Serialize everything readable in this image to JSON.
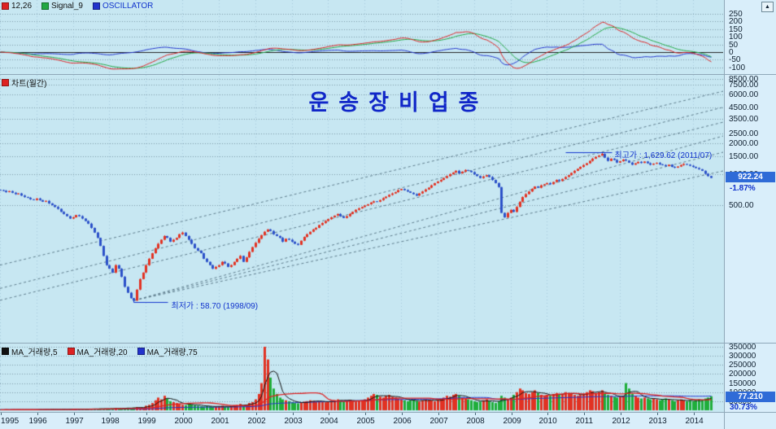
{
  "window": {
    "expand_button_glyph": "▲"
  },
  "macd_panel": {
    "legend": [
      {
        "label": "12,26",
        "color": "#dd2222"
      },
      {
        "label": "Signal_9",
        "color": "#22a844"
      },
      {
        "label": "OSCILLATOR",
        "color": "#2233cc",
        "label_color": "#1133cc"
      }
    ],
    "ticks": [
      {
        "v": 250,
        "label": "250"
      },
      {
        "v": 200,
        "label": "200"
      },
      {
        "v": 150,
        "label": "150"
      },
      {
        "v": 100,
        "label": "100"
      },
      {
        "v": 50,
        "label": "50"
      },
      {
        "v": 0,
        "label": "0"
      },
      {
        "v": -50,
        "label": "-50"
      },
      {
        "v": -100,
        "label": "-100"
      }
    ]
  },
  "main_panel": {
    "legend_label": "차트(월간)",
    "legend_color": "#dd2222",
    "title": "운송장비업종",
    "ticks": [
      {
        "v": 8500,
        "label": "8500.00"
      },
      {
        "v": 7500,
        "label": "7500.00"
      },
      {
        "v": 6000,
        "label": "6000.00"
      },
      {
        "v": 4500,
        "label": "4500.00"
      },
      {
        "v": 3500,
        "label": "3500.00"
      },
      {
        "v": 2500,
        "label": "2500.00"
      },
      {
        "v": 2000,
        "label": "2000.00"
      },
      {
        "v": 1500,
        "label": "1500.00"
      },
      {
        "v": 1000,
        "label": "1000.00"
      },
      {
        "v": 500,
        "label": "500.00"
      }
    ],
    "badge_label": "922.24",
    "badge_color": "#2f6bd7",
    "change_percent": "-1.87%",
    "high_annotation": "최고가 : 1,629.62 (2011/07)",
    "low_annotation": "최저가 : 58.70 (1998/09)"
  },
  "volume_panel": {
    "legend": [
      {
        "label": "MA_거래량,5",
        "color": "#111111"
      },
      {
        "label": "MA_거래량,20",
        "color": "#dd2222"
      },
      {
        "label": "MA_거래량,75",
        "color": "#2233cc"
      }
    ],
    "ticks": [
      {
        "v": 350000,
        "label": "350000"
      },
      {
        "v": 300000,
        "label": "300000"
      },
      {
        "v": 250000,
        "label": "250000"
      },
      {
        "v": 200000,
        "label": "200000"
      },
      {
        "v": 150000,
        "label": "150000"
      },
      {
        "v": 100000,
        "label": "100000"
      },
      {
        "v": 50000,
        "label": "50000"
      }
    ],
    "badge_label": "77.210",
    "badge_color": "#2f6bd7",
    "percent": "30.73%"
  },
  "x_axis": {
    "years": [
      1995,
      1996,
      1997,
      1998,
      1999,
      2000,
      2001,
      2002,
      2003,
      2004,
      2005,
      2006,
      2007,
      2008,
      2009,
      2010,
      2011,
      2012,
      2013,
      2014
    ]
  },
  "chart_data": {
    "type": "candlestick",
    "title": "운송장비업종",
    "freq": "monthly",
    "start": "1995-01",
    "end": "2014-07",
    "y_scale": "log",
    "ylim_log": [
      23,
      9300
    ],
    "total_slots": 238,
    "last_close": 922.24,
    "last_change_pct": -1.87,
    "last_volume": 77210,
    "volume_axis_max": 350000,
    "macd_axis_range": [
      -120,
      280
    ],
    "low_point": {
      "index": 44,
      "date": "1998-09",
      "value": 58.7
    },
    "high_point": {
      "index": 198,
      "date": "2011-07",
      "value": 1629.62
    },
    "colors": {
      "candle_up": "#e23222",
      "candle_down": "#2b50c8",
      "macd": "#dd2222",
      "signal": "#22a844",
      "oscillator": "#2233cc",
      "vol_up": "#e23222",
      "vol_down": "#1fae3a",
      "vol_ma5": "#111111",
      "vol_ma20": "#dd2222",
      "vol_ma75": "#2233cc",
      "grid": "#7d99a8",
      "year_grid": "#a5c9da",
      "trend": "#5d7b8b",
      "annotation": "#1133cc"
    },
    "closes": [
      700,
      690,
      670,
      685,
      660,
      640,
      650,
      620,
      600,
      590,
      570,
      560,
      580,
      560,
      540,
      550,
      520,
      500,
      480,
      460,
      430,
      410,
      390,
      370,
      380,
      400,
      390,
      370,
      350,
      330,
      300,
      270,
      240,
      200,
      160,
      130,
      120,
      110,
      130,
      120,
      100,
      80,
      70,
      62,
      58.7,
      75,
      95,
      110,
      130,
      150,
      170,
      190,
      210,
      230,
      250,
      240,
      220,
      230,
      240,
      260,
      270,
      250,
      230,
      210,
      190,
      180,
      170,
      150,
      140,
      130,
      120,
      125,
      130,
      140,
      135,
      125,
      130,
      140,
      150,
      160,
      140,
      155,
      175,
      195,
      215,
      235,
      255,
      275,
      290,
      280,
      260,
      250,
      240,
      220,
      235,
      230,
      220,
      210,
      205,
      225,
      245,
      260,
      275,
      290,
      300,
      320,
      335,
      350,
      365,
      380,
      395,
      410,
      390,
      375,
      390,
      410,
      430,
      450,
      465,
      480,
      495,
      510,
      530,
      545,
      540,
      560,
      585,
      605,
      630,
      650,
      670,
      700,
      720,
      700,
      680,
      660,
      640,
      620,
      650,
      680,
      710,
      740,
      780,
      820,
      850,
      880,
      920,
      960,
      1000,
      1040,
      1080,
      1020,
      1060,
      1100,
      1080,
      1050,
      1000,
      960,
      920,
      950,
      980,
      940,
      880,
      820,
      750,
      420,
      380,
      420,
      450,
      430,
      480,
      540,
      600,
      640,
      680,
      720,
      760,
      740,
      780,
      800,
      820,
      800,
      840,
      880,
      860,
      900,
      940,
      980,
      1030,
      1080,
      1130,
      1180,
      1230,
      1280,
      1350,
      1420,
      1480,
      1520,
      1580,
      1450,
      1350,
      1420,
      1380,
      1300,
      1340,
      1390,
      1360,
      1300,
      1240,
      1280,
      1320,
      1290,
      1330,
      1280,
      1240,
      1270,
      1290,
      1250,
      1230,
      1200,
      1240,
      1180,
      1160,
      1190,
      1230,
      1260,
      1240,
      1210,
      1180,
      1150,
      1120,
      1080,
      1010,
      960,
      922.24
    ],
    "volumes_unit": 1000,
    "volumes_k": [
      3,
      3,
      4,
      3,
      4,
      3,
      4,
      3,
      3,
      4,
      3,
      4,
      4,
      5,
      4,
      5,
      4,
      6,
      5,
      4,
      5,
      6,
      5,
      6,
      6,
      7,
      6,
      8,
      7,
      6,
      8,
      9,
      8,
      10,
      9,
      8,
      9,
      10,
      12,
      11,
      10,
      12,
      14,
      13,
      15,
      18,
      16,
      14,
      25,
      30,
      40,
      55,
      70,
      60,
      80,
      65,
      50,
      45,
      40,
      35,
      30,
      28,
      35,
      32,
      28,
      25,
      22,
      20,
      25,
      22,
      18,
      20,
      22,
      25,
      20,
      18,
      22,
      28,
      30,
      35,
      25,
      30,
      40,
      45,
      60,
      90,
      150,
      350,
      280,
      180,
      120,
      90,
      70,
      60,
      55,
      50,
      45,
      40,
      38,
      42,
      48,
      50,
      55,
      52,
      48,
      50,
      46,
      44,
      48,
      52,
      56,
      60,
      55,
      50,
      54,
      58,
      52,
      48,
      50,
      55,
      60,
      70,
      80,
      90,
      85,
      75,
      70,
      80,
      85,
      75,
      70,
      65,
      60,
      55,
      50,
      55,
      60,
      52,
      48,
      55,
      60,
      58,
      54,
      50,
      55,
      60,
      70,
      80,
      75,
      85,
      90,
      80,
      70,
      65,
      60,
      55,
      50,
      45,
      48,
      55,
      60,
      52,
      45,
      40,
      50,
      80,
      70,
      60,
      70,
      85,
      100,
      120,
      110,
      95,
      90,
      100,
      110,
      95,
      85,
      80,
      85,
      80,
      90,
      95,
      85,
      90,
      100,
      95,
      90,
      85,
      80,
      85,
      90,
      100,
      110,
      105,
      95,
      100,
      110,
      90,
      85,
      80,
      75,
      70,
      75,
      80,
      150,
      120,
      90,
      80,
      70,
      65,
      70,
      65,
      60,
      65,
      60,
      55,
      60,
      65,
      60,
      55,
      50,
      55,
      60,
      55,
      50,
      55,
      50,
      55,
      60,
      55,
      65,
      70,
      77.21
    ],
    "trend_lines": [
      {
        "x1": 0,
        "v1": 77,
        "x2": 1,
        "v2": 4500
      },
      {
        "x1": 0,
        "v1": 59,
        "x2": 1,
        "v2": 3220
      },
      {
        "x1": 0.186,
        "v1": 59,
        "x2": 1,
        "v2": 2360
      },
      {
        "x1": 0.186,
        "v1": 59,
        "x2": 1,
        "v2": 1640
      },
      {
        "x1": 0.186,
        "v1": 59,
        "x2": 1,
        "v2": 1077
      },
      {
        "x1": 0,
        "v1": 130,
        "x2": 1,
        "v2": 6450
      }
    ]
  }
}
